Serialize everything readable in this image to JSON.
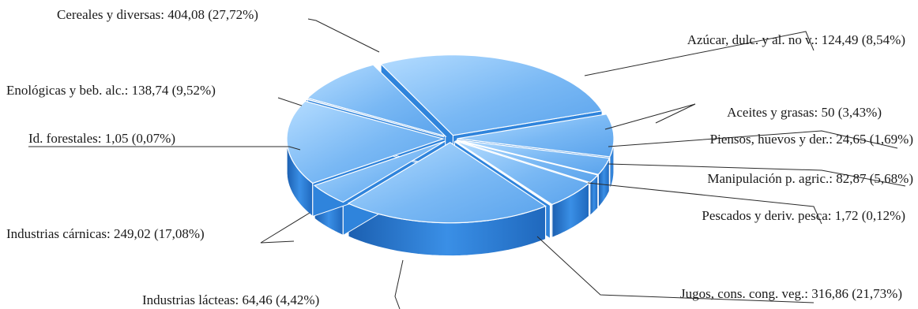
{
  "chart_data": {
    "type": "pie",
    "style": "3d-exploded",
    "title": "",
    "colors": {
      "top": "#6fb2f2",
      "top_highlight": "#a9d4ff",
      "side": "#2a7fd6",
      "side_dark": "#1c63b4",
      "edge": "#ffffff"
    },
    "slices": [
      {
        "label": "Cereales y diversas: 404,08 (27,72%)",
        "category": "Cereales y diversas",
        "value": 404.08,
        "percent": 27.72
      },
      {
        "label": "Azúcar, dulc. y al. no v.: 124,49 (8,54%)",
        "category": "Azúcar, dulc. y al. no v.",
        "value": 124.49,
        "percent": 8.54
      },
      {
        "label": "Aceites y grasas: 50 (3,43%)",
        "category": "Aceites y grasas",
        "value": 50,
        "percent": 3.43
      },
      {
        "label": "Piensos, huevos y der.: 24,65 (1,69%)",
        "category": "Piensos, huevos y der.",
        "value": 24.65,
        "percent": 1.69
      },
      {
        "label": "Manipulación p. agric.: 82,87 (5,68%)",
        "category": "Manipulación p. agric.",
        "value": 82.87,
        "percent": 5.68
      },
      {
        "label": "Pescados y deriv. pesca: 1,72 (0,12%)",
        "category": "Pescados y deriv. pesca",
        "value": 1.72,
        "percent": 0.12
      },
      {
        "label": "Jugos, cons. cong. veg.: 316,86 (21,73%)",
        "category": "Jugos, cons. cong. veg.",
        "value": 316.86,
        "percent": 21.73
      },
      {
        "label": "Industrias lácteas: 64,46 (4,42%)",
        "category": "Industrias lácteas",
        "value": 64.46,
        "percent": 4.42
      },
      {
        "label": "Industrias cárnicas: 249,02 (17,08%)",
        "category": "Industrias cárnicas",
        "value": 249.02,
        "percent": 17.08
      },
      {
        "label": "Id. forestales: 1,05 (0,07%)",
        "category": "Id. forestales",
        "value": 1.05,
        "percent": 0.07
      },
      {
        "label": "Enológicas y beb. alc.: 138,74 (9,52%)",
        "category": "Enológicas y beb. alc.",
        "value": 138.74,
        "percent": 9.52
      }
    ]
  }
}
